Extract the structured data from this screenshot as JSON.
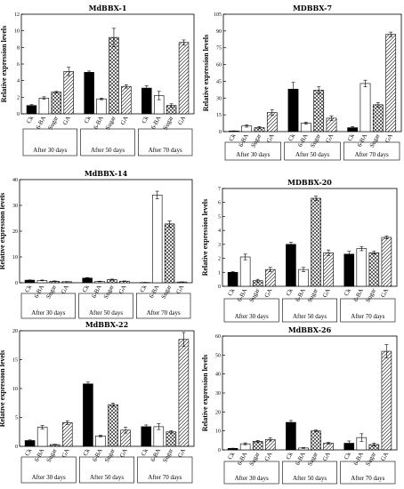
{
  "figure": {
    "id": "mdbbx-expression-panels"
  },
  "chart_data": [
    {
      "type": "bar",
      "title": "MdBBX-1",
      "ylabel": "Relative expression levels",
      "ylim": [
        0,
        12
      ],
      "yticks": [
        0,
        2,
        4,
        6,
        8,
        10,
        12
      ],
      "categories": [
        "Ck",
        "6-BA",
        "Sugar",
        "GA"
      ],
      "groups": [
        "After 30 days",
        "After 50 days",
        "After 70 days"
      ],
      "values": [
        [
          1.0,
          1.9,
          2.6,
          5.1
        ],
        [
          5.0,
          1.8,
          9.2,
          3.3
        ],
        [
          3.1,
          2.2,
          1.0,
          8.6
        ]
      ],
      "errors": [
        [
          0.1,
          0.15,
          0.1,
          0.5
        ],
        [
          0.15,
          0.1,
          1.1,
          0.2
        ],
        [
          0.3,
          0.5,
          0.2,
          0.3
        ]
      ]
    },
    {
      "type": "bar",
      "title": "MDBBX-7",
      "ylabel": "Relative expression levels",
      "ylim": [
        0,
        105
      ],
      "yticks": [
        0,
        15,
        30,
        45,
        60,
        75,
        90,
        105
      ],
      "categories": [
        "Ck",
        "6-BA",
        "Sugar",
        "GA"
      ],
      "groups": [
        "After 30 days",
        "After 50 days",
        "After 70 days"
      ],
      "values": [
        [
          0.5,
          5.0,
          3.5,
          17.0
        ],
        [
          38.0,
          7.5,
          37.0,
          12.0
        ],
        [
          3.5,
          43.0,
          24.0,
          87.0
        ]
      ],
      "errors": [
        [
          0.2,
          1.0,
          1.0,
          2.5
        ],
        [
          6.0,
          0.8,
          3.0,
          2.0
        ],
        [
          1.0,
          3.0,
          2.0,
          2.0
        ]
      ]
    },
    {
      "type": "bar",
      "title": "MdBBX-14",
      "ylabel": "Relative expression levels",
      "ylim": [
        0,
        40
      ],
      "yticks": [
        0,
        10,
        20,
        30,
        40
      ],
      "categories": [
        "Ck",
        "6-BA",
        "Sugar",
        "GA"
      ],
      "groups": [
        "After 30 days",
        "After 50 days",
        "After 70 days"
      ],
      "values": [
        [
          1.0,
          0.9,
          0.6,
          0.4
        ],
        [
          1.8,
          0.5,
          1.2,
          0.6
        ],
        [
          0.1,
          34.0,
          22.8,
          0.3
        ]
      ],
      "errors": [
        [
          0.1,
          0.15,
          0.1,
          0.05
        ],
        [
          0.2,
          0.1,
          0.2,
          0.1
        ],
        [
          0.05,
          1.5,
          1.2,
          0.05
        ]
      ]
    },
    {
      "type": "bar",
      "title": "MDBBX-20",
      "ylabel": "Relative expression levels",
      "ylim": [
        0,
        7
      ],
      "yticks": [
        0,
        1,
        2,
        3,
        4,
        5,
        6,
        7
      ],
      "categories": [
        "Ck",
        "6-BA",
        "Sugar",
        "GA"
      ],
      "groups": [
        "After 30 days",
        "After 50 days",
        "After 70 days"
      ],
      "values": [
        [
          1.0,
          2.1,
          0.4,
          1.2
        ],
        [
          3.0,
          1.2,
          6.3,
          2.4
        ],
        [
          2.3,
          2.7,
          2.4,
          3.5
        ]
      ],
      "errors": [
        [
          0.05,
          0.2,
          0.1,
          0.15
        ],
        [
          0.15,
          0.15,
          0.15,
          0.2
        ],
        [
          0.2,
          0.15,
          0.1,
          0.1
        ]
      ]
    },
    {
      "type": "bar",
      "title": "MdBBX-22",
      "ylabel": "Relative expression levels",
      "ylim": [
        0,
        20
      ],
      "yticks": [
        0,
        5,
        10,
        15,
        20
      ],
      "categories": [
        "Ck",
        "6-BA",
        "Sugar",
        "GA"
      ],
      "groups": [
        "After 30 days",
        "After 50 days",
        "After 70 days"
      ],
      "values": [
        [
          1.0,
          3.3,
          0.3,
          4.1
        ],
        [
          10.8,
          1.8,
          7.2,
          2.8
        ],
        [
          3.4,
          3.4,
          2.5,
          18.5
        ]
      ],
      "errors": [
        [
          0.1,
          0.3,
          0.05,
          0.3
        ],
        [
          0.3,
          0.15,
          0.3,
          0.5
        ],
        [
          0.3,
          0.5,
          0.2,
          1.2
        ]
      ]
    },
    {
      "type": "bar",
      "title": "MdBBX-26",
      "ylabel": "Relative expression levels",
      "ylim": [
        0,
        60
      ],
      "yticks": [
        0,
        10,
        20,
        30,
        40,
        50,
        60
      ],
      "categories": [
        "Ck",
        "6-BA",
        "Sugar",
        "GA"
      ],
      "groups": [
        "After 30 days",
        "After 50 days",
        "After 70 days"
      ],
      "values": [
        [
          0.8,
          3.2,
          4.5,
          5.5
        ],
        [
          14.5,
          1.0,
          10.0,
          3.5
        ],
        [
          3.5,
          6.5,
          2.8,
          52.0
        ]
      ],
      "errors": [
        [
          0.1,
          0.5,
          0.5,
          0.8
        ],
        [
          1.0,
          0.2,
          0.5,
          0.5
        ],
        [
          1.2,
          2.0,
          0.8,
          3.5
        ]
      ]
    }
  ],
  "style": {
    "bar_fills": [
      "solid-black",
      "white",
      "crosshatch",
      "diagonal-hatch"
    ],
    "ink": "#000000",
    "background": "#ffffff"
  }
}
